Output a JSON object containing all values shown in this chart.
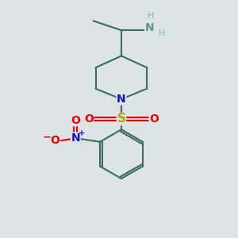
{
  "bg_color": "#dde4e6",
  "bond_color": "#3a6b60",
  "bond_width": 1.5,
  "atom_colors": {
    "N_amine": "#5a9898",
    "H_amine": "#7ab8b0",
    "N_pip": "#1010cc",
    "S": "#b8a000",
    "O_sulfonyl": "#ee0000",
    "NO2_N": "#1010cc",
    "NO2_O": "#ee0000"
  },
  "figsize": [
    3.0,
    3.0
  ],
  "dpi": 100,
  "xlim": [
    0,
    10
  ],
  "ylim": [
    0,
    10
  ]
}
